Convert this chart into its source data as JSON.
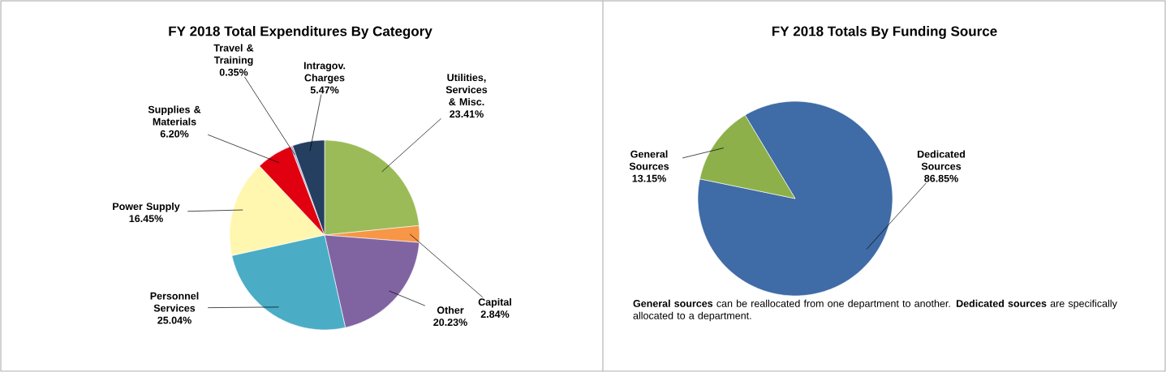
{
  "chart_data": [
    {
      "type": "pie",
      "title": "FY 2018 Total Expenditures By Category",
      "categories": [
        "Utilities, Services & Misc.",
        "Capital",
        "Other",
        "Personnel Services",
        "Power Supply",
        "Supplies & Materials",
        "Travel & Training",
        "Intragov. Charges"
      ],
      "values": [
        23.41,
        2.84,
        20.23,
        25.04,
        16.45,
        6.2,
        0.35,
        5.47
      ],
      "value_labels": [
        "23.41%",
        "2.84%",
        "20.23%",
        "25.04%",
        "16.45%",
        "6.20%",
        "0.35%",
        "5.47%"
      ],
      "colors": [
        "#9bbb59",
        "#f79646",
        "#8064a2",
        "#4bacc6",
        "#fff7b0",
        "#e00010",
        "#b3a2c7",
        "#243f60"
      ]
    },
    {
      "type": "pie",
      "title": "FY 2018 Totals By Funding Source",
      "categories": [
        "Dedicated Sources",
        "General Sources"
      ],
      "values": [
        86.85,
        13.15
      ],
      "value_labels": [
        "86.85%",
        "13.15%"
      ],
      "colors": [
        "#3f6ba6",
        "#8db04a"
      ],
      "annotations": [
        "**General sources** can be reallocated from one department to another.  **Dedicated sources** are specifically allocated to a department."
      ]
    }
  ]
}
